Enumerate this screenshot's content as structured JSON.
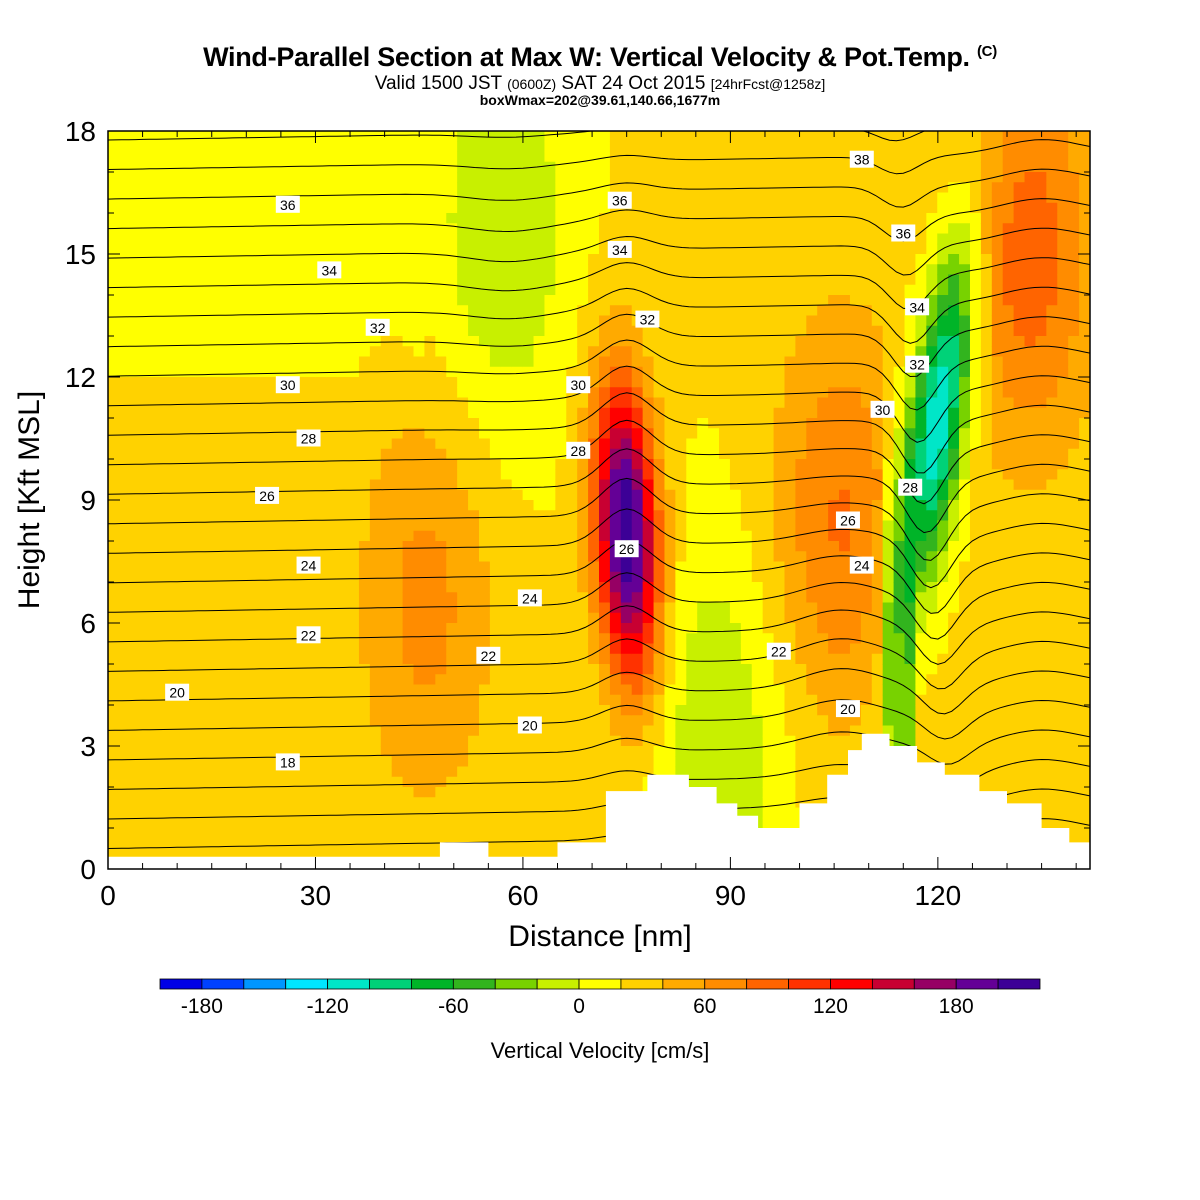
{
  "title": {
    "main": "Wind-Parallel Section at Max W: Vertical Velocity & Pot.Temp.",
    "copyright": "(C)",
    "valid_prefix": "Valid 1500 JST",
    "valid_utc": "(0600Z)",
    "valid_date": "SAT 24 Oct 2015",
    "forecast": "[24hrFcst@1258z]",
    "box_info": "boxWmax=202@39.61,140.66,1677m"
  },
  "chart_data": {
    "type": "heatmap",
    "title": "Wind-Parallel Section at Max W: Vertical Velocity & Pot.Temp.",
    "xlabel": "Distance [nm]",
    "ylabel": "Height [Kft MSL]",
    "xlim": [
      0,
      142
    ],
    "ylim": [
      0,
      18
    ],
    "x_ticks": [
      0,
      30,
      60,
      90,
      120
    ],
    "y_ticks": [
      0,
      3,
      6,
      9,
      12,
      15,
      18
    ],
    "fill_variable": "Vertical Velocity [cm/s]",
    "colorbar": {
      "label": "Vertical Velocity [cm/s]",
      "range": [
        -200,
        220
      ],
      "step": 20,
      "tick_labels": [
        -180,
        -120,
        -60,
        0,
        60,
        120,
        180
      ],
      "colors": [
        "#0000e6",
        "#0041ff",
        "#0096ff",
        "#00e6ff",
        "#00e6c8",
        "#00d278",
        "#00b428",
        "#32b41e",
        "#78d200",
        "#c8f000",
        "#ffff00",
        "#ffd200",
        "#ffaa00",
        "#ff8c00",
        "#ff6400",
        "#ff3200",
        "#ff0000",
        "#c80032",
        "#960064",
        "#640096",
        "#3c0096"
      ]
    },
    "features": [
      {
        "kind": "updraft",
        "x": 75,
        "y": 8.2,
        "peak": 202
      },
      {
        "kind": "downdraft",
        "x": 120,
        "y": 11,
        "peak": -150
      },
      {
        "kind": "updraft",
        "x": 106,
        "y": 8.5,
        "peak": 60
      },
      {
        "kind": "updraft",
        "x": 46,
        "y": 6.5,
        "peak": 45
      },
      {
        "kind": "updraft",
        "x": 133,
        "y": 15,
        "peak": 70
      },
      {
        "kind": "downdraft",
        "x": 57,
        "y": 15.5,
        "peak": -40
      },
      {
        "kind": "downdraft",
        "x": 88,
        "y": 3,
        "peak": -40
      }
    ],
    "terrain": {
      "x": [
        0,
        48,
        48,
        55,
        55,
        61,
        61,
        65,
        65,
        72,
        72,
        78,
        78,
        84,
        84,
        88,
        88,
        91,
        91,
        94,
        94,
        100,
        100,
        104,
        104,
        107,
        107,
        109,
        109,
        113,
        113,
        117,
        117,
        121,
        121,
        126,
        126,
        130,
        130,
        135,
        135,
        139,
        139,
        142
      ],
      "y": [
        0.3,
        0.3,
        0.65,
        0.65,
        0.3,
        0.3,
        0.3,
        0.3,
        0.65,
        0.65,
        1.9,
        1.9,
        2.3,
        2.3,
        2.0,
        2.0,
        1.6,
        1.6,
        1.3,
        1.3,
        1.0,
        1.0,
        1.6,
        1.6,
        2.3,
        2.3,
        2.9,
        2.9,
        3.3,
        3.3,
        3.0,
        3.0,
        2.6,
        2.6,
        2.3,
        2.3,
        1.9,
        1.9,
        1.6,
        1.6,
        1.0,
        1.0,
        0.65,
        0.65
      ]
    },
    "theta_contours": {
      "label": "Pot.Temp.",
      "levels": [
        14,
        15,
        16,
        17,
        18,
        19,
        20,
        21,
        22,
        23,
        24,
        25,
        26,
        27,
        28,
        29,
        30,
        31,
        32,
        33,
        34,
        35,
        36,
        37,
        38
      ],
      "labels": [
        {
          "value": 36,
          "x": 26,
          "y": 16.2
        },
        {
          "value": 34,
          "x": 32,
          "y": 14.6
        },
        {
          "value": 32,
          "x": 39,
          "y": 13.2
        },
        {
          "value": 30,
          "x": 26,
          "y": 11.8
        },
        {
          "value": 28,
          "x": 29,
          "y": 10.5
        },
        {
          "value": 26,
          "x": 23,
          "y": 9.1
        },
        {
          "value": 24,
          "x": 29,
          "y": 7.4
        },
        {
          "value": 22,
          "x": 29,
          "y": 5.7
        },
        {
          "value": 20,
          "x": 10,
          "y": 4.3
        },
        {
          "value": 18,
          "x": 26,
          "y": 2.6
        },
        {
          "value": 36,
          "x": 74,
          "y": 16.3
        },
        {
          "value": 34,
          "x": 74,
          "y": 15.1
        },
        {
          "value": 32,
          "x": 78,
          "y": 13.4
        },
        {
          "value": 30,
          "x": 68,
          "y": 11.8
        },
        {
          "value": 28,
          "x": 68,
          "y": 10.2
        },
        {
          "value": 26,
          "x": 75,
          "y": 7.8
        },
        {
          "value": 24,
          "x": 61,
          "y": 6.6
        },
        {
          "value": 22,
          "x": 55,
          "y": 5.2
        },
        {
          "value": 20,
          "x": 61,
          "y": 3.5
        },
        {
          "value": 38,
          "x": 109,
          "y": 17.3
        },
        {
          "value": 36,
          "x": 115,
          "y": 15.5
        },
        {
          "value": 34,
          "x": 117,
          "y": 13.7
        },
        {
          "value": 32,
          "x": 117,
          "y": 12.3
        },
        {
          "value": 30,
          "x": 112,
          "y": 11.2
        },
        {
          "value": 28,
          "x": 116,
          "y": 9.3
        },
        {
          "value": 26,
          "x": 107,
          "y": 8.5
        },
        {
          "value": 24,
          "x": 109,
          "y": 7.4
        },
        {
          "value": 22,
          "x": 97,
          "y": 5.3
        },
        {
          "value": 20,
          "x": 107,
          "y": 3.9
        }
      ]
    }
  }
}
